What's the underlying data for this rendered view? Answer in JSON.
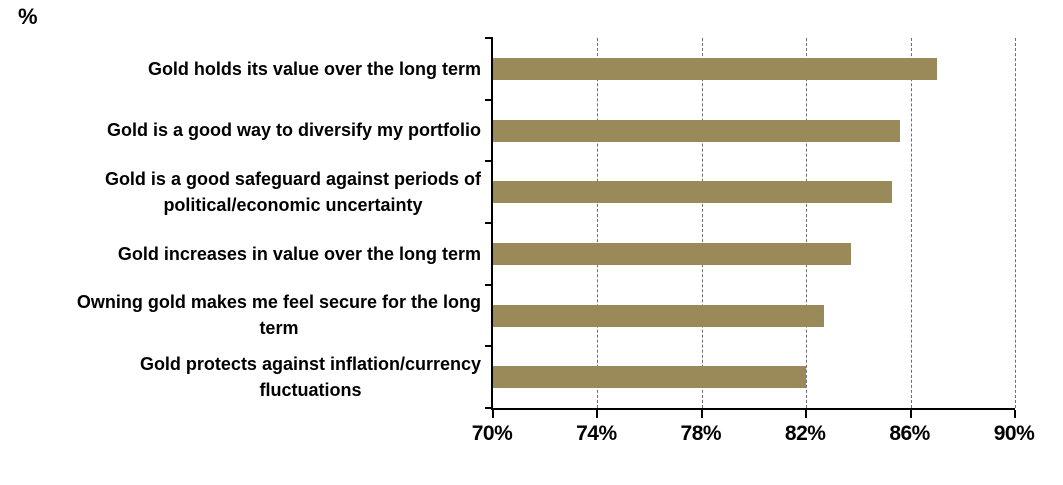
{
  "chart_data": {
    "type": "bar",
    "orientation": "horizontal",
    "unit_label": "%",
    "title": "",
    "categories": [
      "Gold holds its value over the long term",
      "Gold is a good way to diversify my portfolio",
      "Gold is a good safeguard against periods of\npolitical/economic uncertainty",
      "Gold increases in value over the long term",
      "Owning gold makes me feel secure  for the long\nterm",
      "Gold protects against inflation/currency\nfluctuations"
    ],
    "values": [
      87,
      85.6,
      85.3,
      83.7,
      82.7,
      82
    ],
    "xlim": [
      70,
      90
    ],
    "x_ticks": [
      70,
      74,
      78,
      82,
      86,
      90
    ],
    "x_tick_labels": [
      "70%",
      "74%",
      "78%",
      "82%",
      "86%",
      "90%"
    ],
    "grid": "vertical-dashed",
    "legend": "none",
    "bar_color": "#9A8A5A",
    "gridline_color": "#6E6E6E",
    "axis_color": "#000000"
  }
}
